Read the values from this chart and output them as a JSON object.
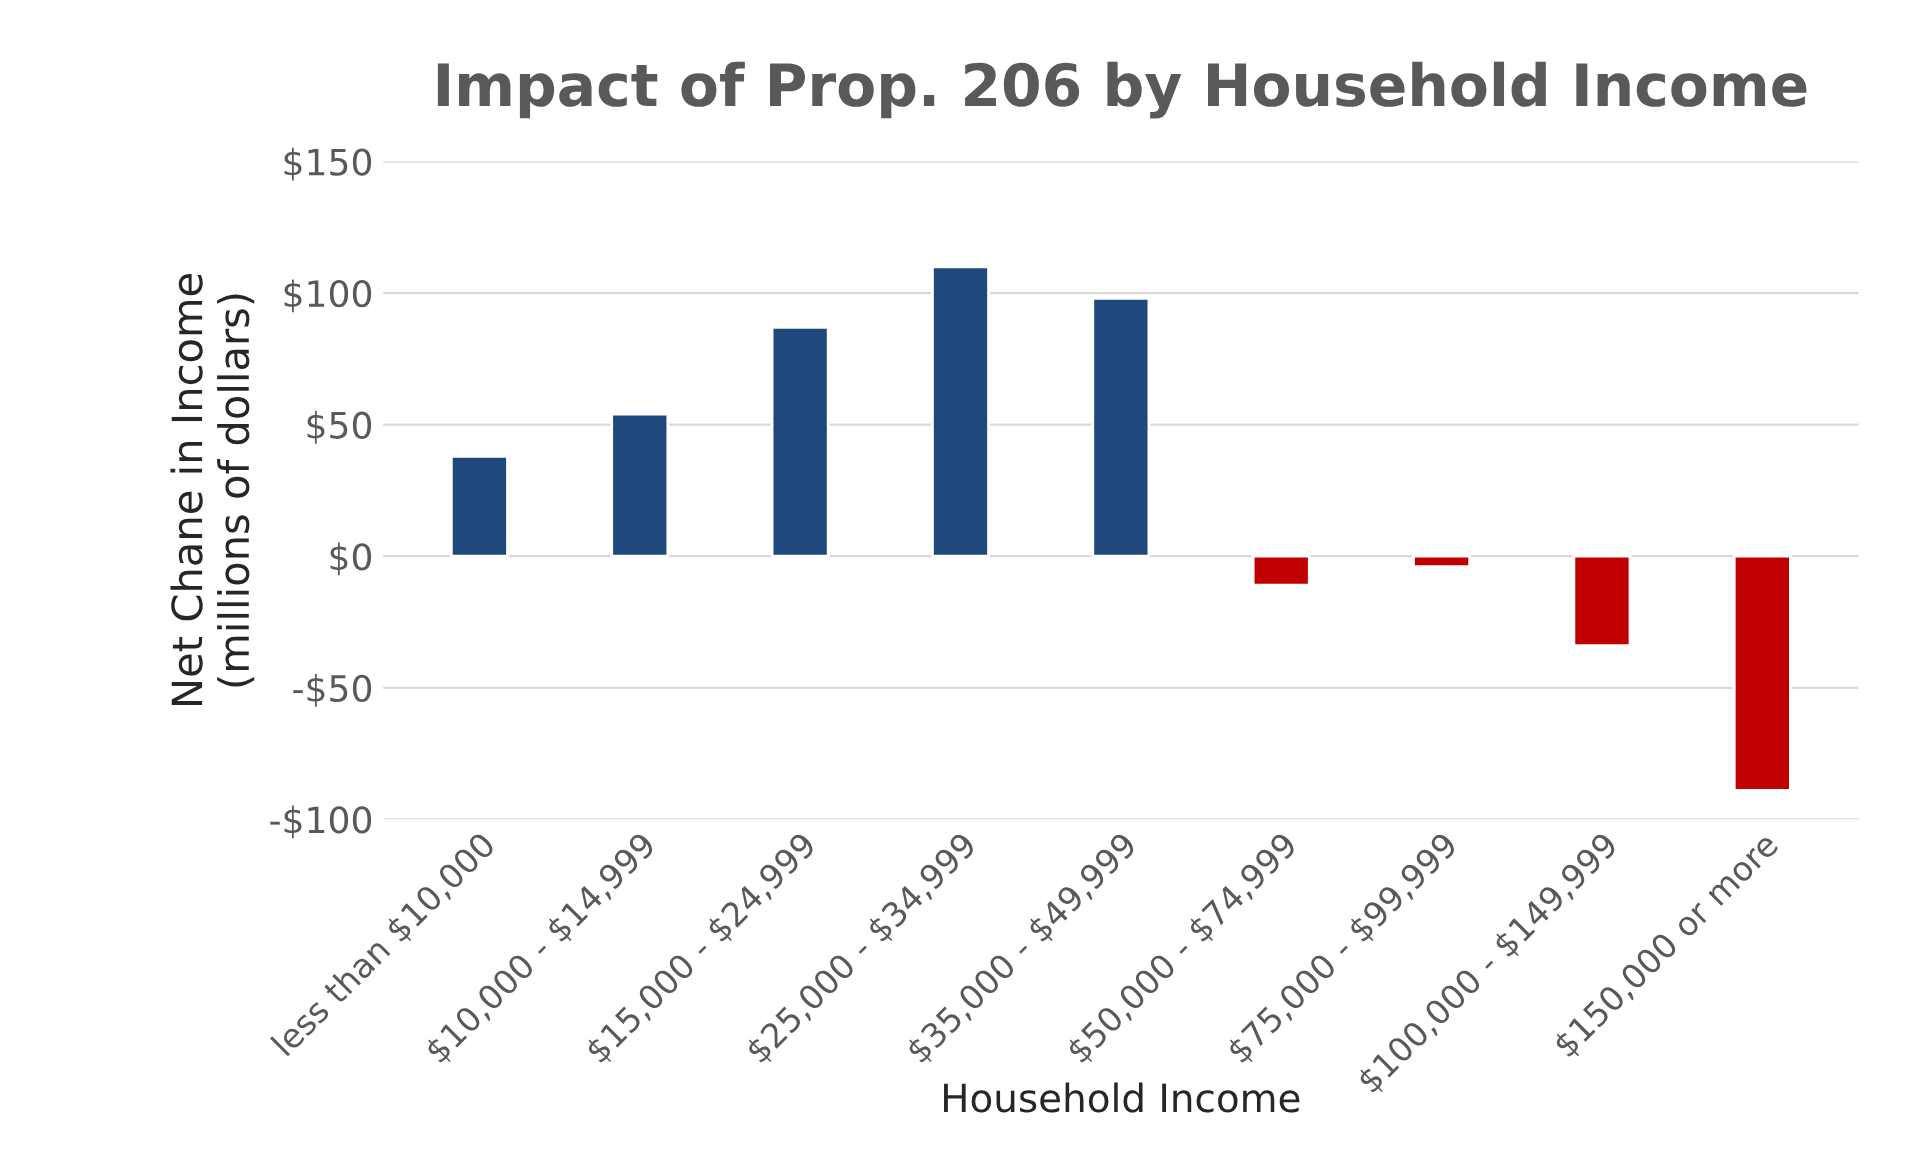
{
  "chart_data": {
    "type": "bar",
    "title": "Impact of Prop. 206 by Household Income",
    "xlabel": "Household Income",
    "ylabel": "Net Chane in Income\n(millions of dollars)",
    "categories": [
      "less than $10,000",
      "$10,000 - $14,999",
      "$15,000 - $24,999",
      "$25,000 - $34,999",
      "$35,000 - $49,999",
      "$50,000 - $74,999",
      "$75,000 - $99,999",
      "$100,000 - $149,999",
      "$150,000 or more"
    ],
    "values": [
      38,
      54,
      87,
      110,
      98,
      -11,
      -4,
      -34,
      -89
    ],
    "colors": [
      "#1f497d",
      "#1f497d",
      "#1f497d",
      "#1f497d",
      "#1f497d",
      "#c00000",
      "#c00000",
      "#c00000",
      "#c00000"
    ],
    "ylim": [
      -100,
      150
    ],
    "yticks": [
      {
        "value": -100,
        "label": "-$100"
      },
      {
        "value": -50,
        "label": "-$50"
      },
      {
        "value": 0,
        "label": "$0"
      },
      {
        "value": 50,
        "label": "$50"
      },
      {
        "value": 100,
        "label": "$100"
      },
      {
        "value": 150,
        "label": "$150"
      }
    ],
    "grid": "y",
    "legend": false
  }
}
